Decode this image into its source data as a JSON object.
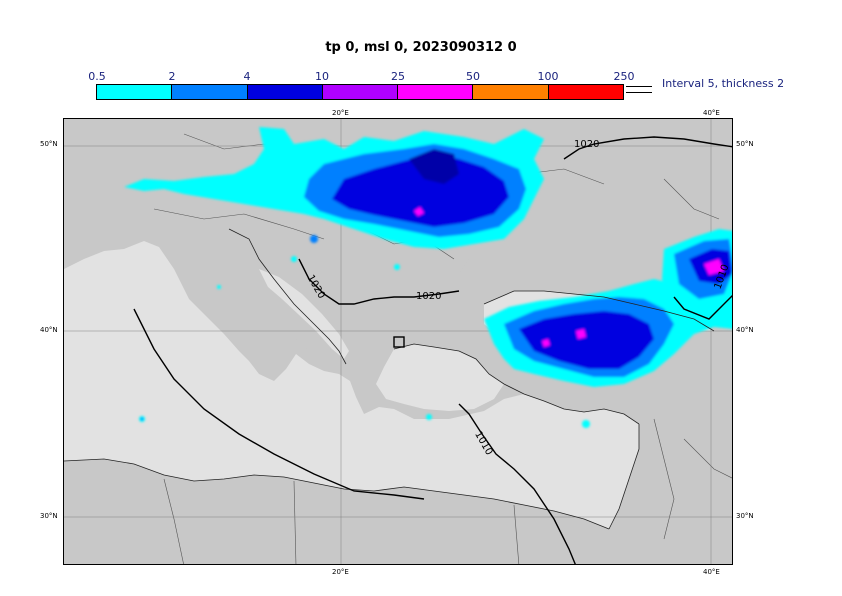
{
  "title": "tp 0, msl 0, 2023090312 0",
  "scale": {
    "labels": [
      "0.5",
      "2",
      "4",
      "10",
      "25",
      "50",
      "100",
      "250"
    ],
    "colors": [
      "#00ffff",
      "#0080ff",
      "#0000e0",
      "#b000ff",
      "#ff00ff",
      "#ff8000",
      "#ff0000"
    ]
  },
  "legend": {
    "interval_text": "Interval 5, thickness 2"
  },
  "map": {
    "lat_labels": [
      "50°N",
      "40°N",
      "30°N"
    ],
    "lon_labels": [
      "20°E",
      "40°E"
    ],
    "isobar_labels": [
      "1020",
      "1020",
      "1020",
      "1010",
      "1010"
    ],
    "colors": {
      "land": "#c8c8c8",
      "sea": "#e2e2e2",
      "grid": "#808080"
    }
  }
}
